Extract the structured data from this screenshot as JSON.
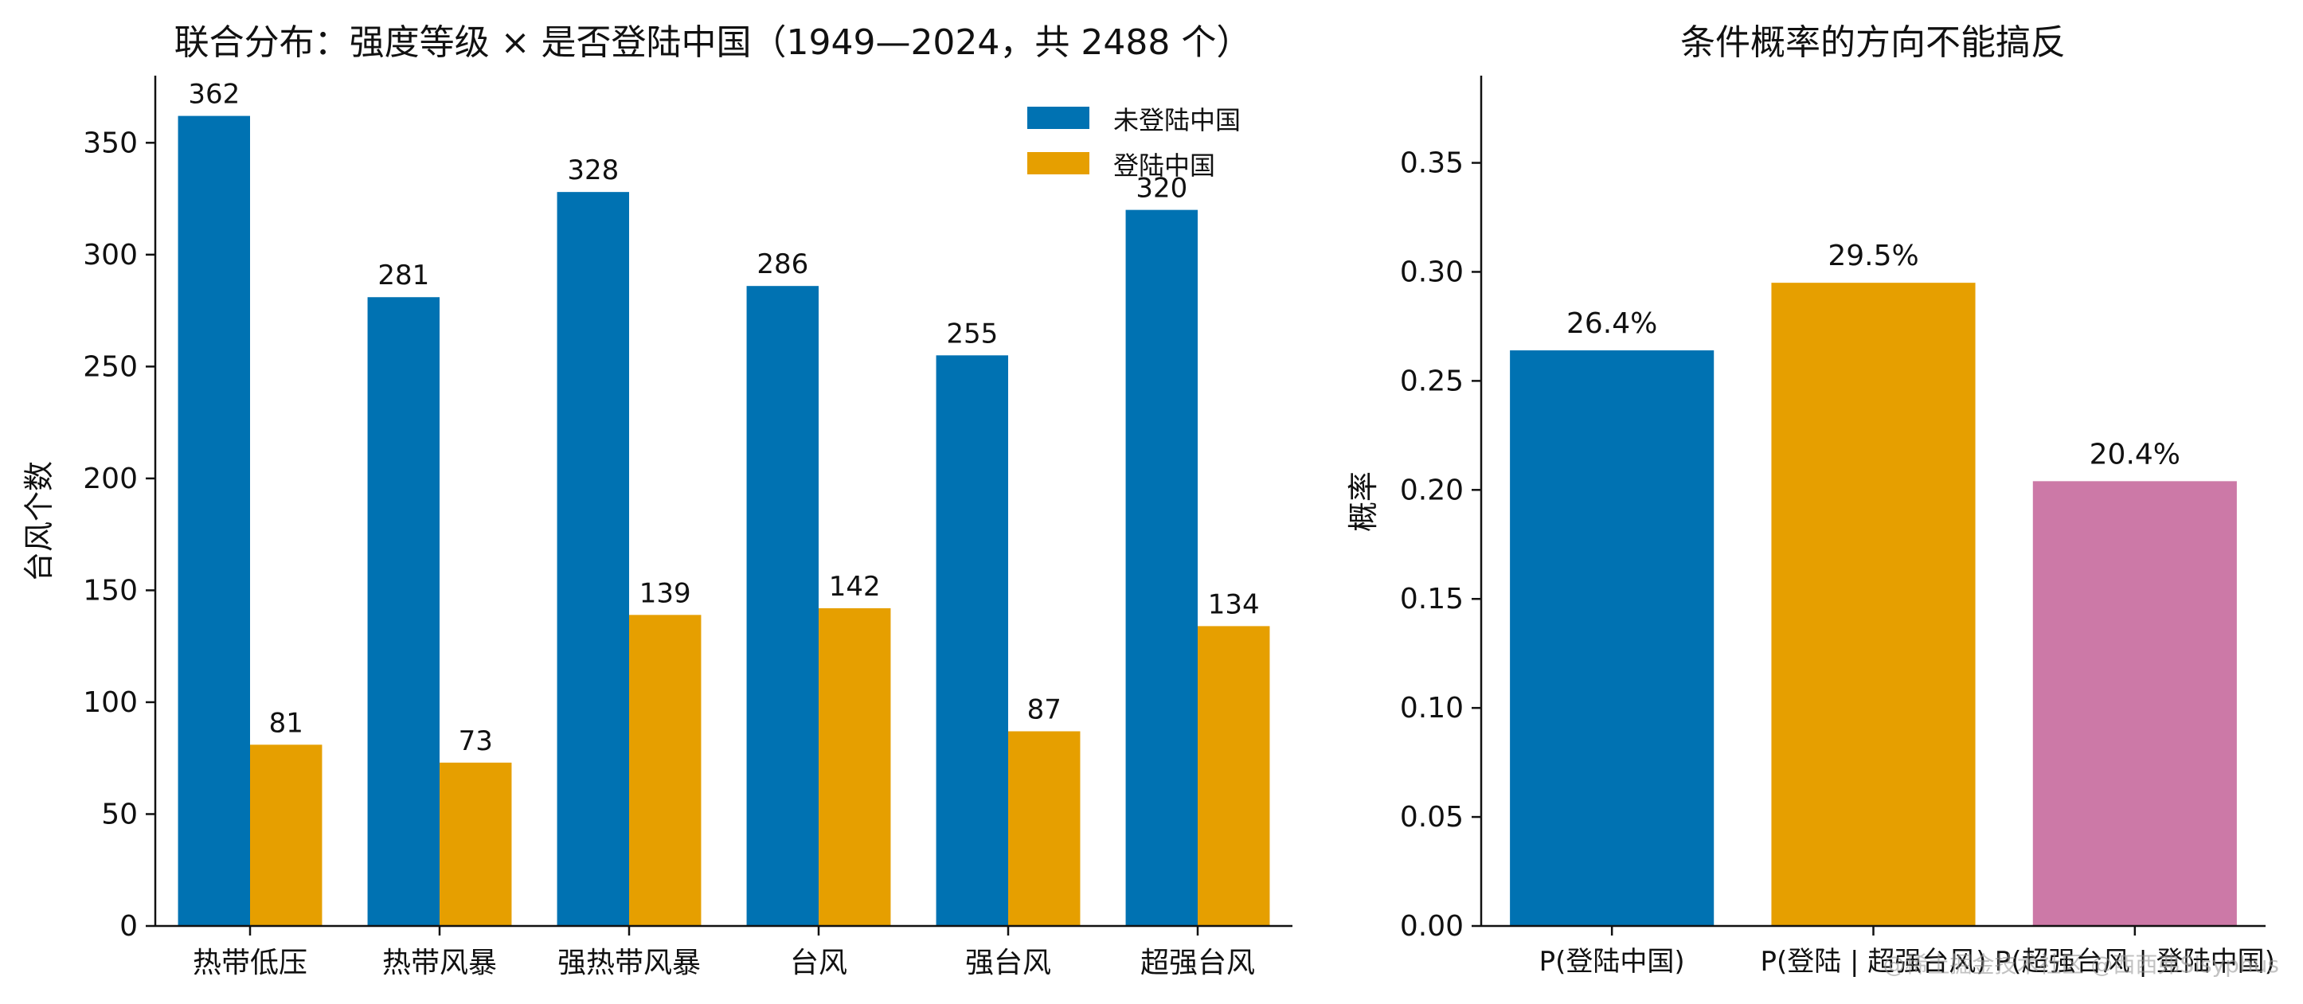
{
  "chart_data": [
    {
      "type": "bar",
      "title": "联合分布：强度等级 × 是否登陆中国（1949—2024，共 2488 个）",
      "xlabel": "",
      "ylabel": "台风个数",
      "categories": [
        "热带低压",
        "热带风暴",
        "强热带风暴",
        "台风",
        "强台风",
        "超强台风"
      ],
      "series": [
        {
          "name": "未登陆中国",
          "color": "#0072B2",
          "values": [
            362,
            281,
            328,
            286,
            255,
            320
          ]
        },
        {
          "name": "登陆中国",
          "color": "#E69F00",
          "values": [
            81,
            73,
            139,
            142,
            87,
            134
          ]
        }
      ],
      "ylim": [
        0,
        380
      ],
      "yticks": [
        0,
        50,
        100,
        150,
        200,
        250,
        300,
        350
      ],
      "grid": false,
      "legend": "top-right"
    },
    {
      "type": "bar",
      "title": "条件概率的方向不能搞反",
      "xlabel": "",
      "ylabel": "概率",
      "categories": [
        "P(登陆中国)",
        "P(登陆 | 超强台风)",
        "P(超强台风 | 登陆中国)"
      ],
      "values": [
        0.264,
        0.295,
        0.204
      ],
      "value_labels": [
        "26.4%",
        "29.5%",
        "20.4%"
      ],
      "colors": [
        "#0072B2",
        "#E69F00",
        "#CC79A7"
      ],
      "ylim": [
        0,
        0.39
      ],
      "yticks": [
        "0.00",
        "0.05",
        "0.10",
        "0.15",
        "0.20",
        "0.25",
        "0.30",
        "0.35"
      ],
      "grid": false
    }
  ],
  "watermark": "@稀土掘金技术社区 @西西弗Sisyphus"
}
